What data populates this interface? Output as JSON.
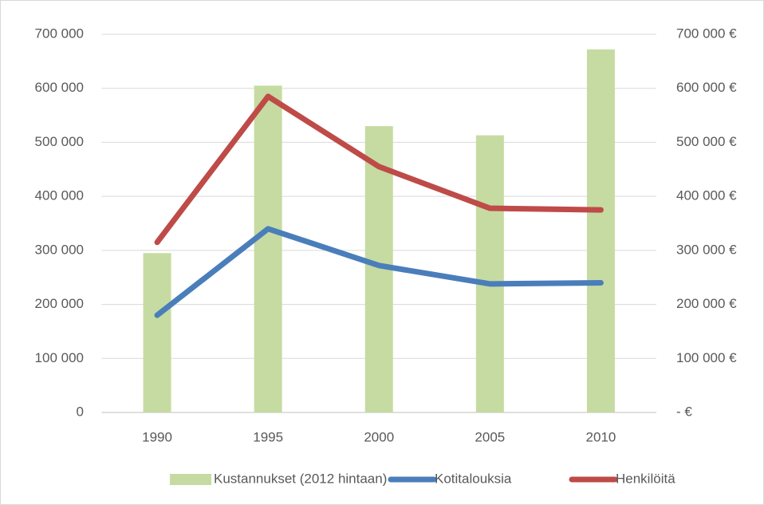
{
  "chart_data": {
    "type": "combo",
    "categories": [
      "1990",
      "1995",
      "2000",
      "2005",
      "2010"
    ],
    "series": [
      {
        "name": "Kustannukset (2012 hintaan)",
        "type": "bar",
        "axis": "y2",
        "color": "#c6dba1",
        "values": [
          295000,
          605000,
          530000,
          513000,
          672000
        ]
      },
      {
        "name": "Kotitalouksia",
        "type": "line",
        "color": "#4a7ebb",
        "values": [
          180000,
          340000,
          272000,
          238000,
          240000
        ]
      },
      {
        "name": "Henkilöitä",
        "type": "line",
        "color": "#be4b48",
        "values": [
          315000,
          585000,
          455000,
          378000,
          375000
        ]
      }
    ],
    "ylim": [
      0,
      700000
    ],
    "yticks": [
      0,
      {
        "value": 100000,
        "label": "100 000"
      },
      {
        "value": 200000,
        "label": "200 000"
      },
      {
        "value": 300000,
        "label": "300 000"
      },
      {
        "value": 400000,
        "label": "400 000"
      },
      {
        "value": 500000,
        "label": "500 000"
      },
      {
        "value": 600000,
        "label": "600 000"
      },
      {
        "value": 700000,
        "label": "700 000"
      }
    ],
    "y2lim": [
      0,
      700000
    ],
    "y2ticks": [
      {
        "value": 0,
        "label": "- €"
      },
      {
        "value": 100000,
        "label": "100 000 €"
      },
      {
        "value": 200000,
        "label": "200 000 €"
      },
      {
        "value": 300000,
        "label": "300 000 €"
      },
      {
        "value": 400000,
        "label": "400 000 €"
      },
      {
        "value": 500000,
        "label": "500 000 €"
      },
      {
        "value": 600000,
        "label": "600 000 €"
      },
      {
        "value": 700000,
        "label": "700 000 €"
      }
    ],
    "grid": true,
    "legend": "bottom"
  }
}
